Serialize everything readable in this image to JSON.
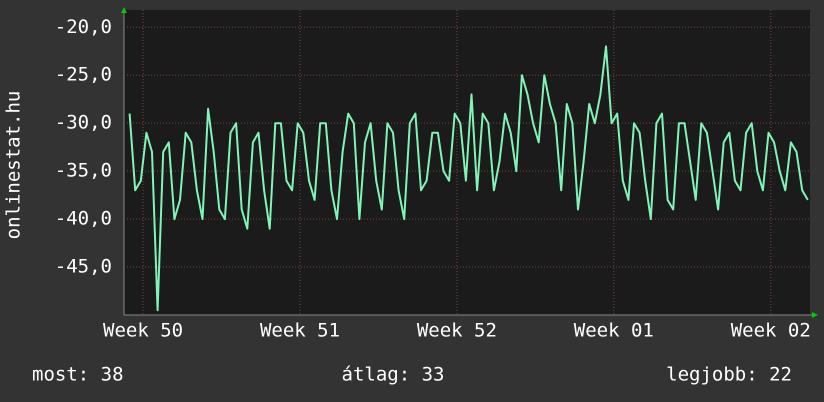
{
  "chart_data": {
    "type": "line",
    "y_label": "onlinestat.hu",
    "xlim": [
      0,
      30.6
    ],
    "xticks": [
      {
        "value": 0.85,
        "label": "Week 50"
      },
      {
        "value": 7.85,
        "label": "Week 51"
      },
      {
        "value": 14.85,
        "label": "Week 52"
      },
      {
        "value": 21.85,
        "label": "Week 01"
      },
      {
        "value": 28.85,
        "label": "Week 02"
      }
    ],
    "ylim": [
      -50,
      -18.2
    ],
    "yticks": [
      {
        "value": -20,
        "label": "-20,0"
      },
      {
        "value": -25,
        "label": "-25,0"
      },
      {
        "value": -30,
        "label": "-30,0"
      },
      {
        "value": -35,
        "label": "-35,0"
      },
      {
        "value": -40,
        "label": "-40,0"
      },
      {
        "value": -45,
        "label": "-45,0"
      }
    ],
    "grid": true,
    "x": [
      0.25,
      0.5,
      0.75,
      1,
      1.25,
      1.5,
      1.75,
      2,
      2.25,
      2.5,
      2.75,
      3,
      3.25,
      3.5,
      3.75,
      4,
      4.25,
      4.5,
      4.75,
      5,
      5.25,
      5.5,
      5.75,
      6,
      6.25,
      6.5,
      6.75,
      7,
      7.25,
      7.5,
      7.75,
      8,
      8.25,
      8.5,
      8.75,
      9,
      9.25,
      9.5,
      9.75,
      10,
      10.25,
      10.5,
      10.75,
      11,
      11.25,
      11.5,
      11.75,
      12,
      12.25,
      12.5,
      12.75,
      13,
      13.25,
      13.5,
      13.75,
      14,
      14.25,
      14.5,
      14.75,
      15,
      15.25,
      15.5,
      15.75,
      16,
      16.25,
      16.5,
      16.75,
      17,
      17.25,
      17.5,
      17.75,
      18,
      18.25,
      18.5,
      18.75,
      19,
      19.25,
      19.5,
      19.75,
      20,
      20.25,
      20.5,
      20.75,
      21,
      21.25,
      21.5,
      21.75,
      22,
      22.25,
      22.5,
      22.75,
      23,
      23.25,
      23.5,
      23.75,
      24,
      24.25,
      24.5,
      24.75,
      25,
      25.25,
      25.5,
      25.75,
      26,
      26.25,
      26.5,
      26.75,
      27,
      27.25,
      27.5,
      27.75,
      28,
      28.25,
      28.5,
      28.75,
      29,
      29.25,
      29.5,
      29.75,
      30,
      30.25,
      30.5
    ],
    "series": [
      {
        "color": "#80f5b5",
        "values": [
          -29,
          -37,
          -36,
          -31,
          -33,
          -49.5,
          -33,
          -32,
          -40,
          -38,
          -31,
          -32,
          -37,
          -40,
          -28.5,
          -33,
          -39,
          -40,
          -31,
          -30,
          -39,
          -41,
          -32,
          -31,
          -37,
          -41,
          -30,
          -30,
          -36,
          -37,
          -30,
          -31,
          -36,
          -38,
          -30,
          -30,
          -37,
          -40,
          -33,
          -29,
          -30,
          -40,
          -32,
          -30,
          -36,
          -39,
          -30,
          -31,
          -37,
          -40,
          -30,
          -29,
          -37,
          -36,
          -31,
          -31,
          -35,
          -36,
          -29,
          -30,
          -36,
          -27,
          -37,
          -29,
          -30,
          -37,
          -34,
          -29,
          -31,
          -35,
          -25,
          -27,
          -30,
          -32,
          -25,
          -28,
          -30,
          -37,
          -28,
          -30,
          -39,
          -34,
          -28,
          -30,
          -27,
          -22,
          -30,
          -29,
          -36,
          -38,
          -30,
          -31,
          -36,
          -40,
          -30,
          -29,
          -38,
          -39,
          -30,
          -30,
          -34,
          -38,
          -30,
          -31,
          -35,
          -39,
          -32,
          -31,
          -36,
          -37,
          -31,
          -30,
          -35,
          -37,
          -31,
          -32,
          -35,
          -37,
          -32,
          -33,
          -37,
          -38
        ]
      }
    ],
    "annotations": [
      "most: 38",
      "átlag: 33",
      "legjobb: 22"
    ]
  }
}
